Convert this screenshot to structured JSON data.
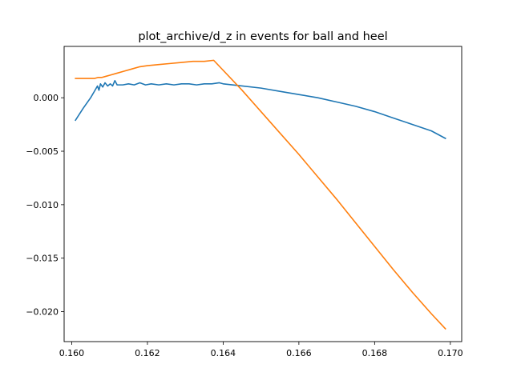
{
  "chart_data": {
    "type": "line",
    "title": "plot_archive/d_z in events for ball and heel",
    "xlabel": "",
    "ylabel": "",
    "xlim": [
      0.1598,
      0.1703
    ],
    "ylim": [
      -0.0228,
      0.0048
    ],
    "x_ticks": [
      0.16,
      0.162,
      0.164,
      0.166,
      0.168,
      0.17
    ],
    "x_tick_labels": [
      "0.160",
      "0.162",
      "0.164",
      "0.166",
      "0.168",
      "0.170"
    ],
    "y_ticks": [
      0.0,
      -0.005,
      -0.01,
      -0.015,
      -0.02
    ],
    "y_tick_labels": [
      "0.000",
      "−0.005",
      "−0.010",
      "−0.015",
      "−0.020"
    ],
    "grid": false,
    "legend": "none",
    "series": [
      {
        "color": "#1f77b4",
        "points": [
          [
            0.1601,
            -0.0021
          ],
          [
            0.1603,
            -0.001
          ],
          [
            0.1605,
            0.0
          ],
          [
            0.1606,
            0.0006
          ],
          [
            0.16068,
            0.0011
          ],
          [
            0.16072,
            0.0007
          ],
          [
            0.16076,
            0.0013
          ],
          [
            0.16082,
            0.001
          ],
          [
            0.16088,
            0.0014
          ],
          [
            0.16095,
            0.0011
          ],
          [
            0.16102,
            0.0013
          ],
          [
            0.16108,
            0.0011
          ],
          [
            0.16114,
            0.0016
          ],
          [
            0.1612,
            0.0012
          ],
          [
            0.16135,
            0.0012
          ],
          [
            0.1615,
            0.0013
          ],
          [
            0.16165,
            0.0012
          ],
          [
            0.1618,
            0.0014
          ],
          [
            0.16195,
            0.0012
          ],
          [
            0.1621,
            0.0013
          ],
          [
            0.1623,
            0.0012
          ],
          [
            0.1625,
            0.0013
          ],
          [
            0.1627,
            0.0012
          ],
          [
            0.1629,
            0.0013
          ],
          [
            0.1631,
            0.0013
          ],
          [
            0.1633,
            0.0012
          ],
          [
            0.1635,
            0.0013
          ],
          [
            0.1637,
            0.0013
          ],
          [
            0.1639,
            0.0014
          ],
          [
            0.164,
            0.0013
          ],
          [
            0.1645,
            0.0011
          ],
          [
            0.165,
            0.0009
          ],
          [
            0.1655,
            0.0006
          ],
          [
            0.166,
            0.0003
          ],
          [
            0.1665,
            0.0
          ],
          [
            0.167,
            -0.0004
          ],
          [
            0.1675,
            -0.0008
          ],
          [
            0.168,
            -0.0013
          ],
          [
            0.1685,
            -0.0019
          ],
          [
            0.169,
            -0.0025
          ],
          [
            0.1695,
            -0.0031
          ],
          [
            0.16987,
            -0.0038
          ]
        ]
      },
      {
        "color": "#ff7f0e",
        "points": [
          [
            0.1601,
            0.0018
          ],
          [
            0.1606,
            0.0018
          ],
          [
            0.1607,
            0.0019
          ],
          [
            0.1608,
            0.0019
          ],
          [
            0.1609,
            0.002
          ],
          [
            0.161,
            0.0021
          ],
          [
            0.1612,
            0.0023
          ],
          [
            0.1614,
            0.0025
          ],
          [
            0.1616,
            0.0027
          ],
          [
            0.1618,
            0.0029
          ],
          [
            0.162,
            0.003
          ],
          [
            0.1623,
            0.0031
          ],
          [
            0.1626,
            0.0032
          ],
          [
            0.1629,
            0.0033
          ],
          [
            0.1632,
            0.0034
          ],
          [
            0.1635,
            0.0034
          ],
          [
            0.16375,
            0.0035
          ],
          [
            0.1645,
            0.0007
          ],
          [
            0.165,
            -0.0013
          ],
          [
            0.1655,
            -0.0033
          ],
          [
            0.166,
            -0.0053
          ],
          [
            0.1665,
            -0.0074
          ],
          [
            0.167,
            -0.0095
          ],
          [
            0.1675,
            -0.0117
          ],
          [
            0.168,
            -0.0139
          ],
          [
            0.1685,
            -0.0161
          ],
          [
            0.169,
            -0.0182
          ],
          [
            0.1695,
            -0.0202
          ],
          [
            0.16987,
            -0.0216
          ]
        ]
      }
    ]
  }
}
